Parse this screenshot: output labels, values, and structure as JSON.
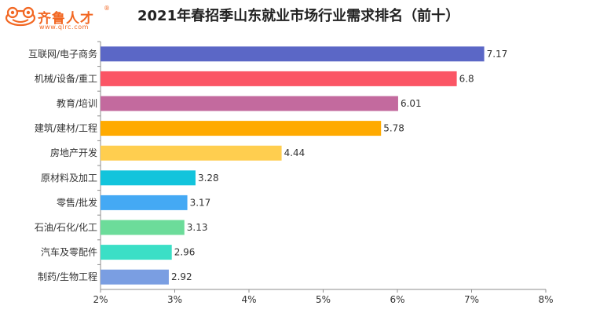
{
  "logo": {
    "name": "齐鲁人才",
    "reg": "®",
    "url": "www.qlrc.com"
  },
  "chart_data": {
    "type": "bar",
    "orientation": "horizontal",
    "title": "2021年春招季山东就业市场行业需求排名（前十）",
    "categories": [
      "互联网/电子商务",
      "机械/设备/重工",
      "教育/培训",
      "建筑/建材/工程",
      "房地产开发",
      "原材料及加工",
      "零售/批发",
      "石油/石化/化工",
      "汽车及零配件",
      "制药/生物工程"
    ],
    "values": [
      7.17,
      6.8,
      6.01,
      5.78,
      4.44,
      3.28,
      3.17,
      3.13,
      2.96,
      2.92
    ],
    "value_labels": [
      "7.17",
      "6.8",
      "6.01",
      "5.78",
      "4.44",
      "3.28",
      "3.17",
      "3.13",
      "2.96",
      "2.92"
    ],
    "colors": [
      "#5b67c6",
      "#fb5565",
      "#c36a9e",
      "#ffaa00",
      "#ffce4f",
      "#12c4dc",
      "#44a9f4",
      "#6cdc9a",
      "#3bdfc6",
      "#7a9ee2"
    ],
    "xlim": [
      2,
      8
    ],
    "xticks": [
      "2%",
      "3%",
      "4%",
      "5%",
      "6%",
      "7%",
      "8%"
    ],
    "xlabel": "",
    "ylabel": "",
    "grid": false,
    "legend": "none"
  }
}
